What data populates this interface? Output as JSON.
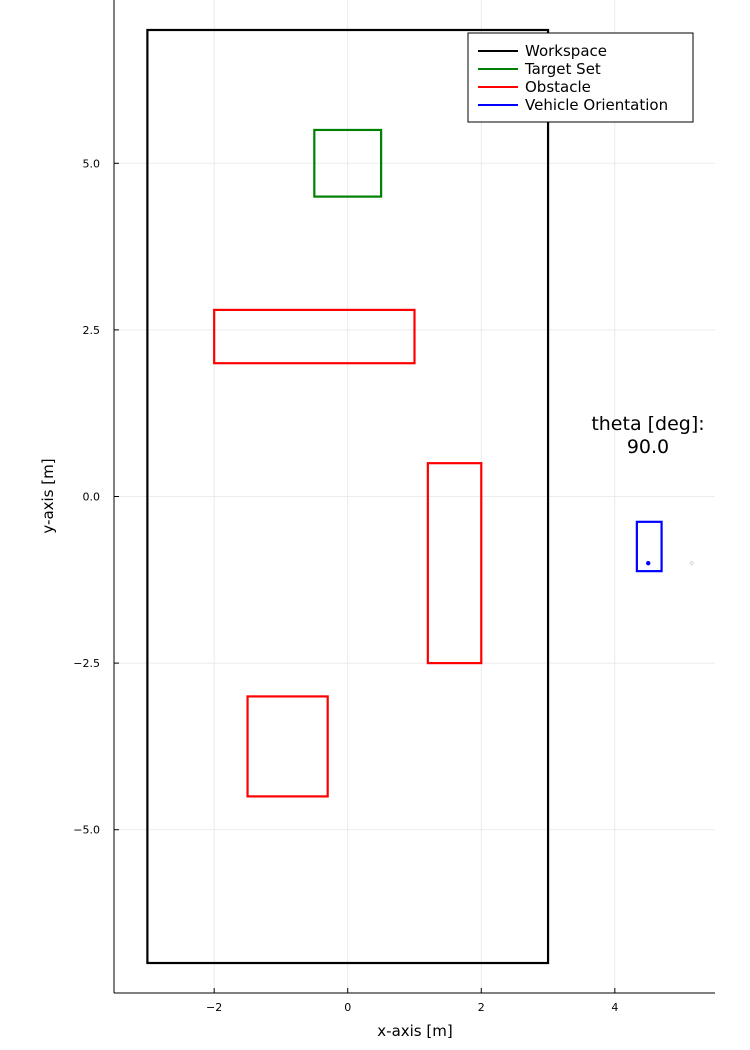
{
  "chart_data": {
    "type": "line",
    "title": "",
    "xlabel": "x-axis [m]",
    "ylabel": "y-axis [m]",
    "xlim": [
      -3.5,
      5.5
    ],
    "ylim": [
      -7.45,
      7.45
    ],
    "grid": true,
    "legend_position": "top-right",
    "x_ticks": [
      {
        "value": -2,
        "label": "−2"
      },
      {
        "value": 0,
        "label": "0"
      },
      {
        "value": 2,
        "label": "2"
      },
      {
        "value": 4,
        "label": "4"
      }
    ],
    "y_ticks": [
      {
        "value": 5.0,
        "label": "5.0"
      },
      {
        "value": 2.5,
        "label": "2.5"
      },
      {
        "value": 0.0,
        "label": "0.0"
      },
      {
        "value": -2.5,
        "label": "−2.5"
      },
      {
        "value": -5.0,
        "label": "−5.0"
      }
    ],
    "series": [
      {
        "name": "Workspace",
        "color": "#000000",
        "rects": [
          {
            "x": [
              -3,
              3
            ],
            "y": [
              -7,
              7
            ]
          }
        ]
      },
      {
        "name": "Target Set",
        "color": "#008000",
        "rects": [
          {
            "x": [
              -0.5,
              0.5
            ],
            "y": [
              4.5,
              5.5
            ]
          }
        ]
      },
      {
        "name": "Obstacle",
        "color": "#ff0000",
        "rects": [
          {
            "x": [
              -2,
              1
            ],
            "y": [
              2,
              2.8
            ]
          },
          {
            "x": [
              1.2,
              2
            ],
            "y": [
              -2.5,
              0.5
            ]
          },
          {
            "x": [
              -1.5,
              -0.3
            ],
            "y": [
              -4.5,
              -3
            ]
          }
        ]
      },
      {
        "name": "Vehicle Orientation",
        "color": "#0000ff",
        "rects": [
          {
            "x": [
              4.33,
              4.7
            ],
            "y": [
              -1.12,
              -0.38
            ]
          }
        ]
      }
    ],
    "vehicle_point": {
      "x": 4.5,
      "y": -1.0,
      "color": "#0000ff"
    },
    "faint_point": {
      "x": 5.15,
      "y": -1.0
    }
  },
  "annotation": {
    "line1": "theta [deg]:",
    "line2": "90.0"
  }
}
